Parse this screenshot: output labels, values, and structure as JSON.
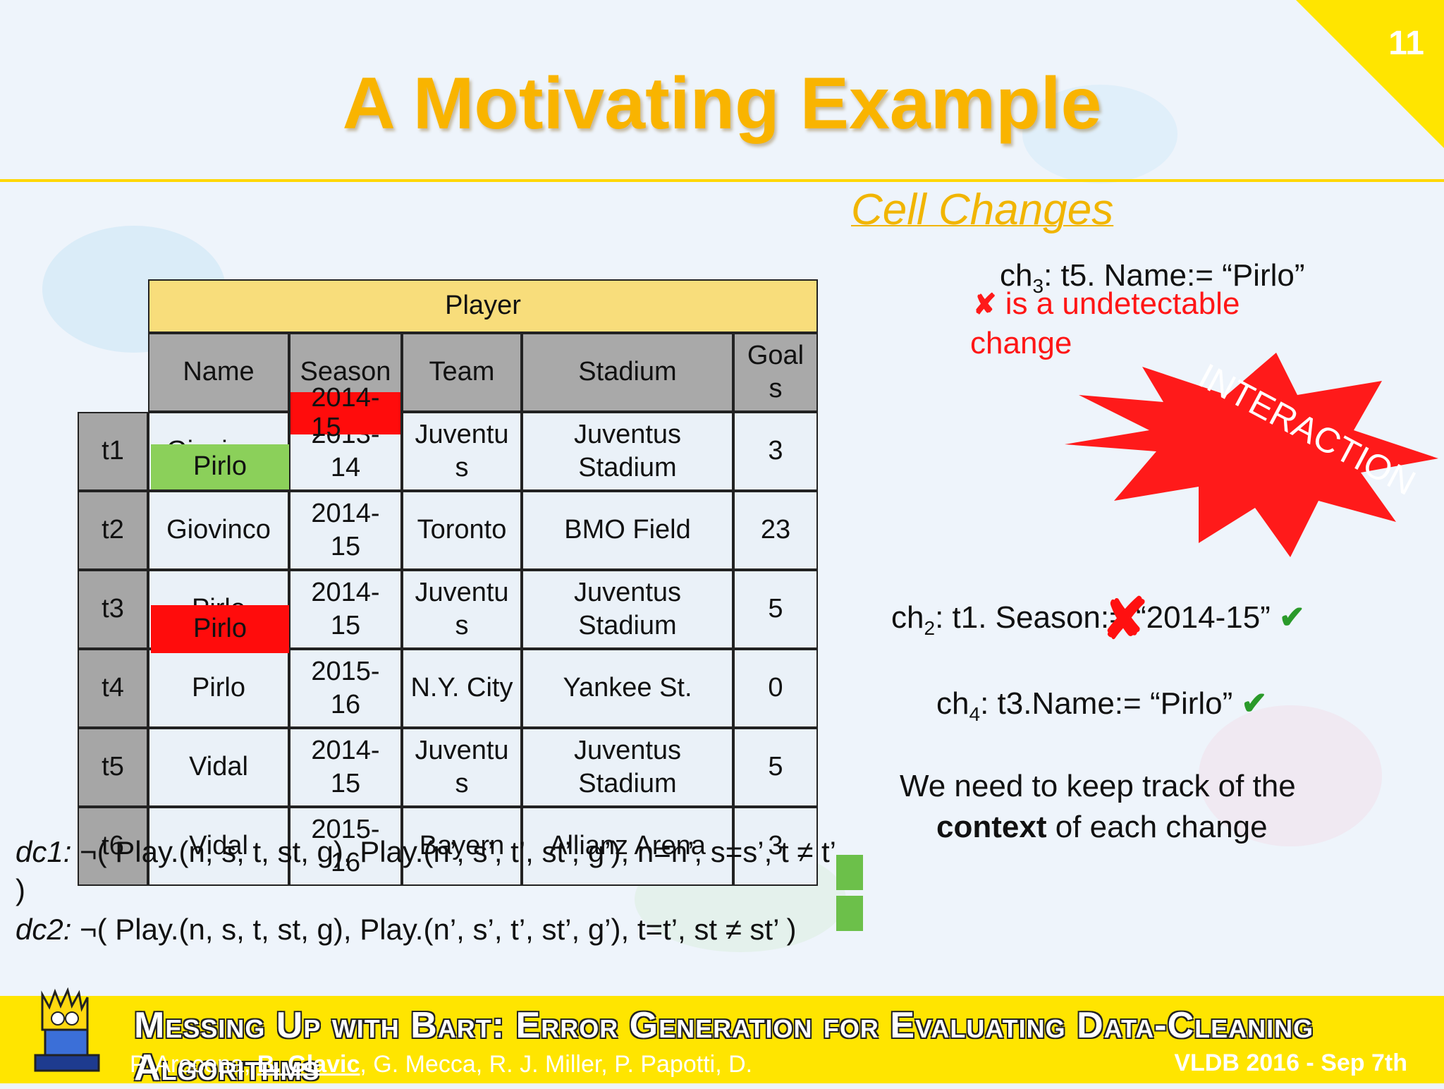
{
  "page_number": "11",
  "title": "A Motivating Example",
  "cell_changes_heading": "Cell Changes",
  "table": {
    "caption": "Player",
    "headers": [
      "Name",
      "Season",
      "Team",
      "Stadium",
      "Goal\ns"
    ],
    "rows": [
      {
        "id": "t1",
        "cells": [
          "Giovinco",
          "2013-\n14",
          "Juventu\ns",
          "Juventus\nStadium",
          "3"
        ]
      },
      {
        "id": "t2",
        "cells": [
          "Giovinco",
          "2014-\n15",
          "Toronto",
          "BMO Field",
          "23"
        ]
      },
      {
        "id": "t3",
        "cells": [
          "Pirlo",
          "2014-\n15",
          "Juventu\ns",
          "Juventus\nStadium",
          "5"
        ]
      },
      {
        "id": "t4",
        "cells": [
          "Pirlo",
          "2015-\n16",
          "N.Y. City",
          "Yankee St.",
          "0"
        ]
      },
      {
        "id": "t5",
        "cells": [
          "Vidal",
          "2014-\n15",
          "Juventu\ns",
          "Juventus\nStadium",
          "5"
        ]
      },
      {
        "id": "t6",
        "cells": [
          "Vidal",
          "2015-\n16",
          "Bayern",
          "Allianz Arena",
          "3"
        ]
      }
    ],
    "overlays": {
      "t1_name": "Pirlo",
      "t1_season": "2014-\n15",
      "t3_name": "Pirlo"
    }
  },
  "changes": {
    "ch3_prefix": "ch",
    "ch3_sub": "3",
    "ch3_rest": ": t5. Name:= “Pirlo”",
    "ch3_mark": "✘",
    "ch3_note_line1": " is a undetectable",
    "ch3_note_line2": "change",
    "interaction": "INTERACTION",
    "ch2_prefix": "ch",
    "ch2_sub": "2",
    "ch2_rest": ": t1. Season:= “2014-15”",
    "ch2_overmark": "✘",
    "ch4_prefix": "ch",
    "ch4_sub": "4",
    "ch4_rest": ": t3.Name:= “Pirlo”",
    "check_mark": "✔",
    "context_line1": "We need to keep track of the",
    "context_bold": "context",
    "context_line2_rest": " of each change"
  },
  "constraints": {
    "dc1_label": "dc1:",
    "dc1_body": " ¬( Play.(n, s, t, st, g), Play.(n’, s’, t’, st’, g’), n=n’, s=s’, t ≠ t’",
    "dc1_close": ")",
    "dc2_label": "dc2:",
    "dc2_body": " ¬( Play.(n, s, t, st, g), Play.(n’, s’, t’, st’, g’), t=t’, st ≠ st’ )"
  },
  "footer": {
    "title": "Messing Up with Bart: Error Generation for Evaluating Data-Cleaning Algorithms",
    "authors_before": "P. Arocena, ",
    "authors_highlight": "B. Glavic",
    "authors_after": ", G. Mecca, R. J. Miller, P. Papotti, D.",
    "venue": "VLDB 2016 - Sep 7th"
  },
  "colors": {
    "title": "#f9b400",
    "accent_yellow": "#ffe500",
    "green_cell": "#8bd05a",
    "red_cell": "#ff0c0c",
    "table_caption": "#f8dd7b"
  }
}
